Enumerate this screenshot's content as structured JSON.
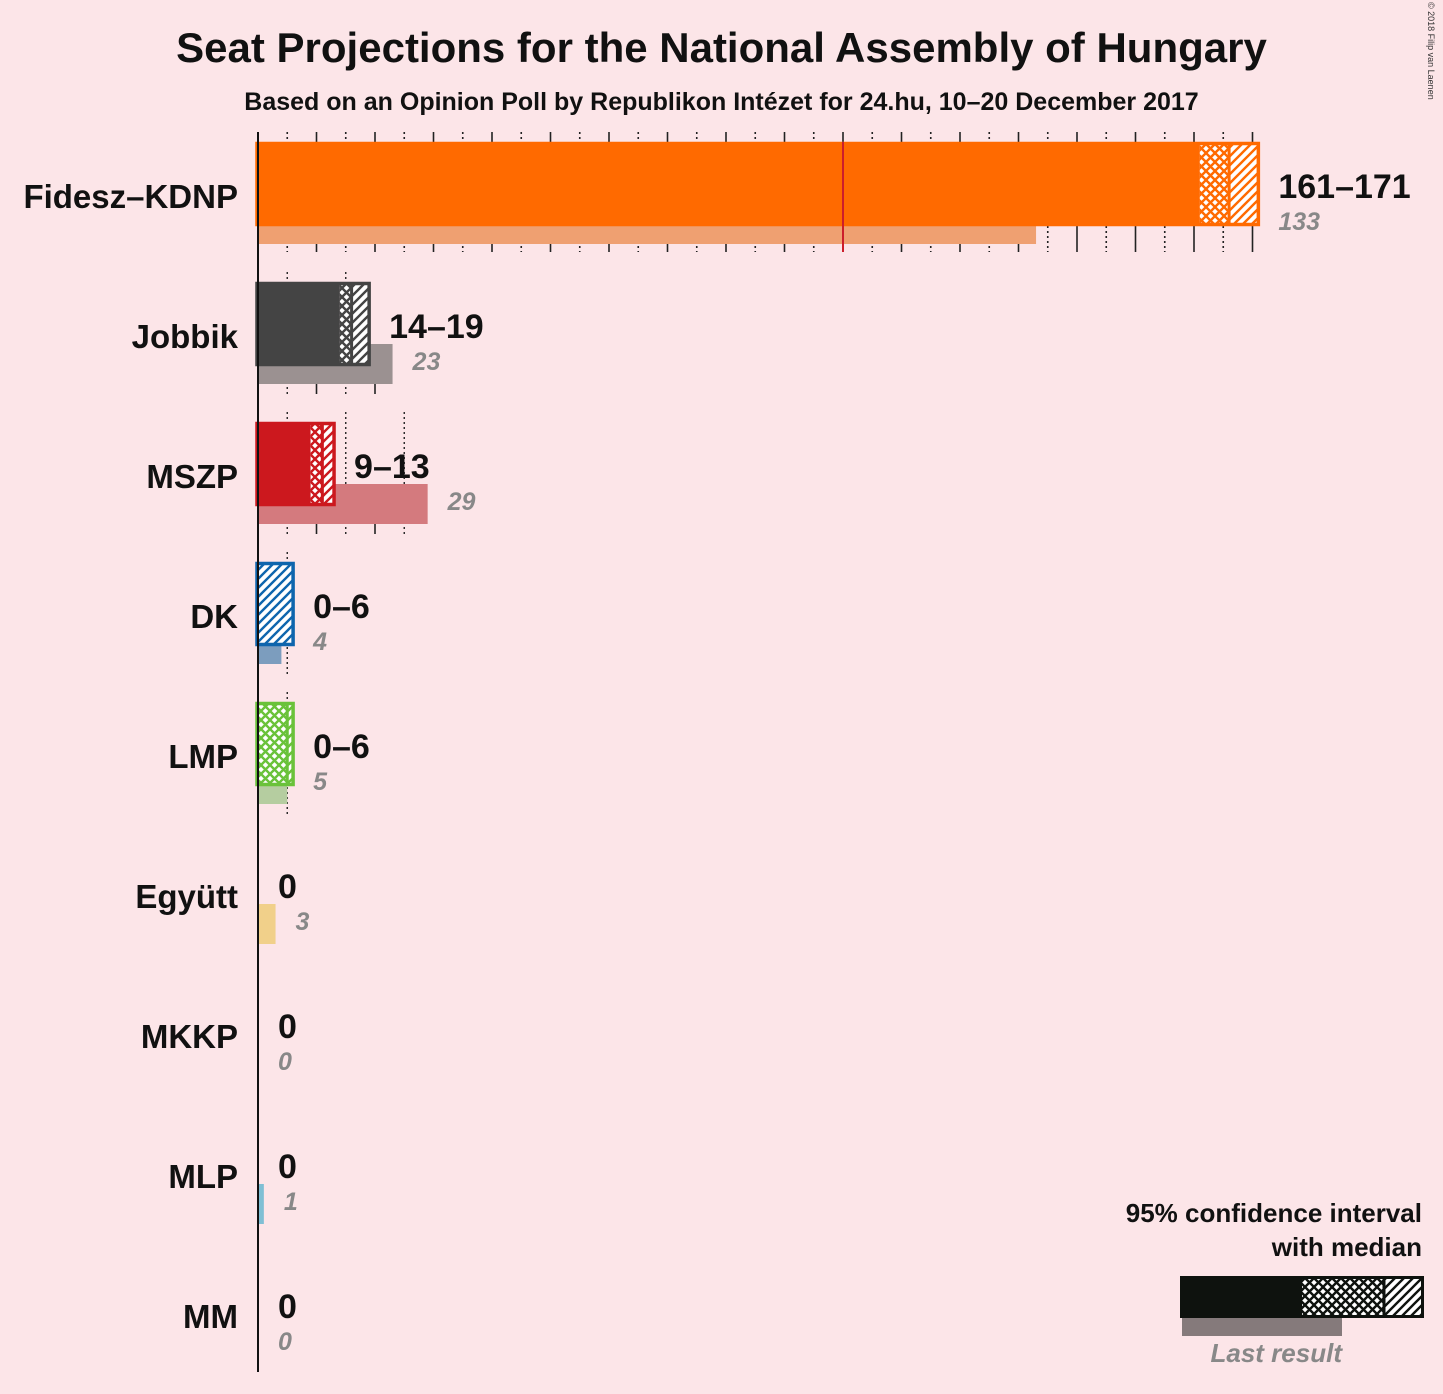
{
  "title": "Seat Projections for the National Assembly of Hungary",
  "subtitle": "Based on an Opinion Poll by Republikon Intézet for 24.hu, 10–20 December 2017",
  "copyright": "© 2018 Filip van Laenen",
  "legend": {
    "line1": "95% confidence interval",
    "line2": "with median",
    "last_result": "Last result"
  },
  "chart_data": {
    "type": "bar",
    "orientation": "horizontal",
    "title": "Seat Projections for the National Assembly of Hungary",
    "subtitle": "Based on an Opinion Poll by Republikon Intézet for 24.hu, 10–20 December 2017",
    "xlim": [
      0,
      171
    ],
    "majority_line": 100,
    "grid": "vertical ticks every 10 seats, dotted every 5",
    "legend_position": "bottom-right",
    "parties": [
      {
        "name": "Fidesz–KDNP",
        "low": 161,
        "median": 166,
        "high": 171,
        "label": "161–171",
        "last": 133,
        "last_label": "133",
        "color": "#FF6A00",
        "last_color": "#EFA071"
      },
      {
        "name": "Jobbik",
        "low": 14,
        "median": 16,
        "high": 19,
        "label": "14–19",
        "last": 23,
        "last_label": "23",
        "color": "#444444",
        "last_color": "#9B9191"
      },
      {
        "name": "MSZP",
        "low": 9,
        "median": 11,
        "high": 13,
        "label": "9–13",
        "last": 29,
        "last_label": "29",
        "color": "#CC181E",
        "last_color": "#D47A7E"
      },
      {
        "name": "DK",
        "low": 0,
        "median": 0,
        "high": 6,
        "label": "0–6",
        "last": 4,
        "last_label": "4",
        "color": "#0E65AD",
        "last_color": "#7C9DBE"
      },
      {
        "name": "LMP",
        "low": 0,
        "median": 5,
        "high": 6,
        "label": "0–6",
        "last": 5,
        "last_label": "5",
        "color": "#6AC23A",
        "last_color": "#B5CDA0"
      },
      {
        "name": "Együtt",
        "low": 0,
        "median": 0,
        "high": 0,
        "label": "0",
        "last": 3,
        "last_label": "3",
        "color": "#F0C25A",
        "last_color": "#F1D08A"
      },
      {
        "name": "MKKP",
        "low": 0,
        "median": 0,
        "high": 0,
        "label": "0",
        "last": 0,
        "last_label": "0",
        "color": "#444444",
        "last_color": "#999999"
      },
      {
        "name": "MLP",
        "low": 0,
        "median": 0,
        "high": 0,
        "label": "0",
        "last": 1,
        "last_label": "1",
        "color": "#45A6C4",
        "last_color": "#7FBFD4"
      },
      {
        "name": "MM",
        "low": 0,
        "median": 0,
        "high": 0,
        "label": "0",
        "last": 0,
        "last_label": "0",
        "color": "#444444",
        "last_color": "#999999"
      }
    ]
  }
}
